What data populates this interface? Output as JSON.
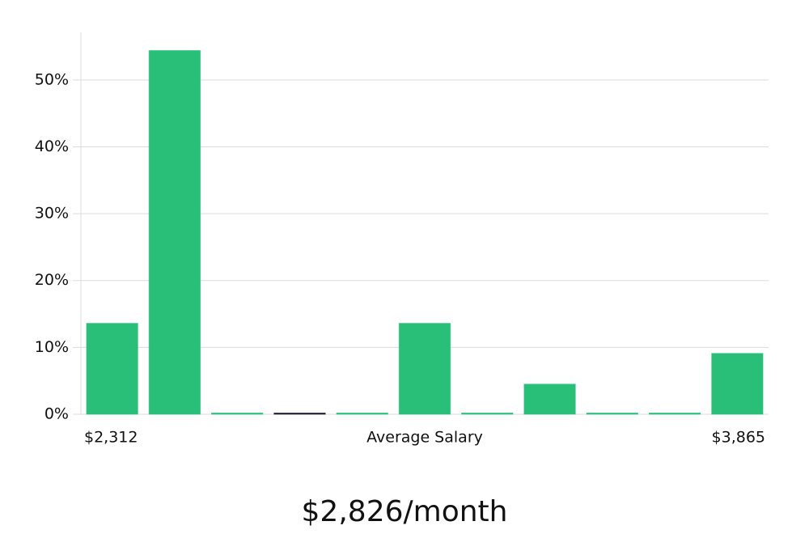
{
  "chart_data": {
    "type": "bar",
    "categories": [
      null,
      null,
      null,
      null,
      null,
      null,
      null,
      null,
      null,
      null,
      null
    ],
    "values": [
      13.6,
      54.4,
      0,
      0,
      0,
      13.6,
      0,
      4.5,
      0,
      0,
      9.1
    ],
    "color": "#2abf78",
    "colors": [
      "#2abf78",
      "#2abf78",
      "#2abf78",
      "#1a1a2e",
      "#2abf78",
      "#2abf78",
      "#2abf78",
      "#2abf78",
      "#2abf78",
      "#2abf78",
      "#2abf78"
    ],
    "ylim": [
      0,
      57
    ],
    "yticks": [
      {
        "value": 0,
        "label": "0%"
      },
      {
        "value": 10,
        "label": "10%"
      },
      {
        "value": 20,
        "label": "20%"
      },
      {
        "value": 30,
        "label": "30%"
      },
      {
        "value": 40,
        "label": "40%"
      },
      {
        "value": 50,
        "label": "50%"
      }
    ],
    "grid": true,
    "xlabel": "Average Salary",
    "x_range_labels": [
      "$2,312",
      "$3,865"
    ],
    "annotation": "$2,826/month"
  }
}
